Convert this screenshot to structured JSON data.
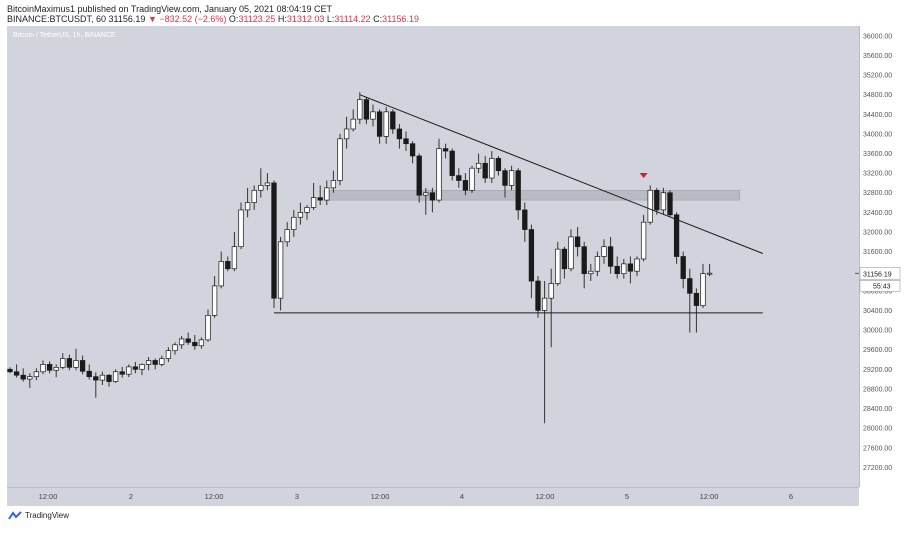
{
  "header": {
    "line1": "BitcoinMaximus1 published on TradingView.com, January 05, 2021 08:04:19 CET",
    "line2_pair": "BINANCE:BTCUSDT, 60",
    "line2_last": "31156.19",
    "line2_change": "▼ −832.52 (−2.6%)",
    "o_label": "O:",
    "o_value": "31123.25",
    "h_label": "H:",
    "h_value": "31312.03",
    "l_label": "L:",
    "l_value": "31114.22",
    "c_label": "C:",
    "c_value": "31156.19"
  },
  "symbol_label": "Bitcoin / TetherUS, 1h, BINANCE",
  "footer": {
    "brand": "TradingView"
  },
  "colors": {
    "background": "#d1d4dc",
    "candle_up": "#ffffff",
    "candle_down": "#1a1a1a",
    "wick": "#333333",
    "line": "#1a1a1a",
    "zone": "#b6b9c2",
    "marker": "#e0162b",
    "negative": "#e0344d"
  },
  "chart_data": {
    "type": "candlestick",
    "title": "",
    "y_unit": "USDT",
    "ylim": [
      26800,
      36200
    ],
    "y_ticks": [
      27200,
      27600,
      28000,
      28400,
      28800,
      29200,
      29600,
      30000,
      30400,
      30800,
      31200,
      31600,
      32000,
      32400,
      32800,
      33200,
      33600,
      34000,
      34400,
      34800,
      35200,
      35600,
      36000
    ],
    "y_tick_labels": [
      "27200.00",
      "27600.00",
      "28000.00",
      "28400.00",
      "28800.00",
      "29200.00",
      "29600.00",
      "30000.00",
      "30400.00",
      "30800.00",
      "31200.00",
      "31600.00",
      "32000.00",
      "32400.00",
      "32800.00",
      "33200.00",
      "33600.00",
      "34000.00",
      "34400.00",
      "34800.00",
      "35200.00",
      "35600.00",
      "36000.00"
    ],
    "x_ticks": [
      "12:00",
      "2",
      "12:00",
      "3",
      "12:00",
      "4",
      "12:00",
      "5",
      "12:00",
      "6"
    ],
    "last_price_label": "31156.19",
    "countdown_label": "55:43",
    "candles": [
      [
        29200,
        29240,
        29120,
        29150
      ],
      [
        29150,
        29300,
        29030,
        29080
      ],
      [
        29080,
        29220,
        28950,
        29000
      ],
      [
        29000,
        29120,
        28820,
        29050
      ],
      [
        29050,
        29220,
        28980,
        29150
      ],
      [
        29150,
        29380,
        29100,
        29300
      ],
      [
        29300,
        29360,
        29120,
        29180
      ],
      [
        29180,
        29300,
        29040,
        29240
      ],
      [
        29240,
        29530,
        29200,
        29420
      ],
      [
        29420,
        29500,
        29180,
        29240
      ],
      [
        29240,
        29620,
        29180,
        29380
      ],
      [
        29380,
        29480,
        29100,
        29160
      ],
      [
        29160,
        29300,
        28990,
        29050
      ],
      [
        29050,
        29140,
        28620,
        28980
      ],
      [
        28980,
        29150,
        28880,
        29080
      ],
      [
        29080,
        29100,
        28850,
        28950
      ],
      [
        28950,
        29200,
        28920,
        29150
      ],
      [
        29150,
        29250,
        29030,
        29100
      ],
      [
        29100,
        29300,
        29040,
        29250
      ],
      [
        29250,
        29350,
        29120,
        29200
      ],
      [
        29200,
        29320,
        29080,
        29300
      ],
      [
        29300,
        29450,
        29180,
        29380
      ],
      [
        29380,
        29420,
        29200,
        29300
      ],
      [
        29300,
        29480,
        29260,
        29420
      ],
      [
        29420,
        29650,
        29350,
        29580
      ],
      [
        29580,
        29750,
        29500,
        29700
      ],
      [
        29700,
        29880,
        29620,
        29820
      ],
      [
        29820,
        29950,
        29700,
        29750
      ],
      [
        29750,
        29900,
        29600,
        29680
      ],
      [
        29680,
        29850,
        29620,
        29800
      ],
      [
        29800,
        30420,
        29760,
        30300
      ],
      [
        30300,
        31100,
        30250,
        30900
      ],
      [
        30900,
        31600,
        30850,
        31400
      ],
      [
        31400,
        31500,
        31200,
        31250
      ],
      [
        31250,
        32000,
        31200,
        31700
      ],
      [
        31700,
        32600,
        31650,
        32450
      ],
      [
        32450,
        32900,
        32300,
        32600
      ],
      [
        32600,
        32950,
        32450,
        32850
      ],
      [
        32850,
        33300,
        32700,
        32950
      ],
      [
        32950,
        33200,
        32850,
        33000
      ],
      [
        33000,
        33050,
        30450,
        30650
      ],
      [
        30650,
        31900,
        30400,
        31800
      ],
      [
        31800,
        32200,
        31700,
        32050
      ],
      [
        32050,
        32450,
        31900,
        32300
      ],
      [
        32300,
        32600,
        32150,
        32400
      ],
      [
        32400,
        32550,
        32250,
        32500
      ],
      [
        32500,
        33000,
        32450,
        32700
      ],
      [
        32700,
        32950,
        32550,
        32650
      ],
      [
        32650,
        33050,
        32550,
        32900
      ],
      [
        32900,
        33250,
        32800,
        33050
      ],
      [
        33050,
        34000,
        32950,
        33900
      ],
      [
        33900,
        34350,
        33700,
        34100
      ],
      [
        34100,
        34500,
        34050,
        34300
      ],
      [
        34300,
        34850,
        34200,
        34700
      ],
      [
        34700,
        34750,
        34200,
        34300
      ],
      [
        34300,
        34600,
        34150,
        34450
      ],
      [
        34450,
        34500,
        33800,
        33950
      ],
      [
        33950,
        34550,
        33800,
        34450
      ],
      [
        34450,
        34500,
        34000,
        34100
      ],
      [
        34100,
        34200,
        33700,
        33900
      ],
      [
        33900,
        34050,
        33650,
        33800
      ],
      [
        33800,
        33850,
        33400,
        33550
      ],
      [
        33550,
        33600,
        32600,
        32750
      ],
      [
        32750,
        32900,
        32350,
        32800
      ],
      [
        32800,
        32900,
        32400,
        32650
      ],
      [
        32650,
        33900,
        32600,
        33700
      ],
      [
        33700,
        33800,
        33500,
        33650
      ],
      [
        33650,
        33700,
        33050,
        33150
      ],
      [
        33150,
        33300,
        32900,
        33050
      ],
      [
        33050,
        33200,
        32750,
        32850
      ],
      [
        32850,
        33350,
        32800,
        33300
      ],
      [
        33300,
        33600,
        33200,
        33400
      ],
      [
        33400,
        33550,
        33000,
        33100
      ],
      [
        33100,
        33650,
        33000,
        33500
      ],
      [
        33500,
        33550,
        33150,
        33250
      ],
      [
        33250,
        33300,
        32700,
        32950
      ],
      [
        32950,
        33350,
        32850,
        33250
      ],
      [
        33250,
        33300,
        32250,
        32450
      ],
      [
        32450,
        32600,
        31800,
        32050
      ],
      [
        32050,
        32150,
        30650,
        31000
      ],
      [
        31000,
        31100,
        30250,
        30400
      ],
      [
        30400,
        31000,
        28100,
        30650
      ],
      [
        30650,
        31250,
        29650,
        30950
      ],
      [
        30950,
        31800,
        30900,
        31650
      ],
      [
        31650,
        31700,
        31050,
        31250
      ],
      [
        31250,
        32050,
        31200,
        31900
      ],
      [
        31900,
        32100,
        31500,
        31700
      ],
      [
        31700,
        31800,
        30850,
        31150
      ],
      [
        31150,
        31350,
        31000,
        31200
      ],
      [
        31200,
        31600,
        31100,
        31500
      ],
      [
        31500,
        31850,
        31350,
        31700
      ],
      [
        31700,
        31900,
        31150,
        31300
      ],
      [
        31300,
        31500,
        31050,
        31150
      ],
      [
        31150,
        31450,
        31050,
        31350
      ],
      [
        31350,
        31500,
        30950,
        31200
      ],
      [
        31200,
        31500,
        31100,
        31450
      ],
      [
        31450,
        32350,
        31400,
        32200
      ],
      [
        32200,
        32950,
        32150,
        32850
      ],
      [
        32850,
        32900,
        32350,
        32450
      ],
      [
        32450,
        32900,
        32350,
        32800
      ],
      [
        32800,
        32850,
        32300,
        32350
      ],
      [
        32350,
        32400,
        31350,
        31500
      ],
      [
        31500,
        31600,
        30850,
        31050
      ],
      [
        31050,
        31250,
        29950,
        30750
      ],
      [
        30750,
        30850,
        29950,
        30500
      ],
      [
        30500,
        31350,
        30450,
        31150
      ],
      [
        31150,
        31350,
        31100,
        31160
      ]
    ],
    "annotations": {
      "descending_trendline": [
        [
          53,
          34800
        ],
        [
          108,
          31500
        ]
      ],
      "support_line": [
        [
          40,
          30350
        ],
        [
          108,
          30350
        ]
      ],
      "resistance_zone": [
        32650,
        32850
      ],
      "sell_marker_candle": 96
    }
  }
}
